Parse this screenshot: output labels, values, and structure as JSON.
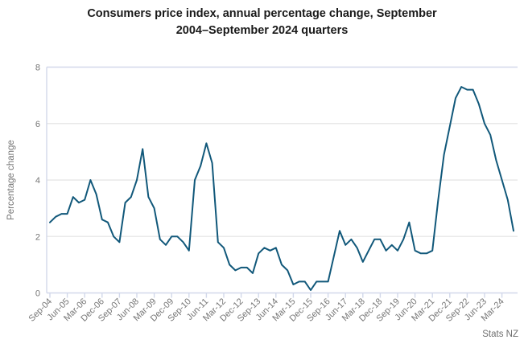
{
  "title": {
    "line1": "Consumers price index, annual percentage change, September",
    "line2": "2004–September 2024 quarters"
  },
  "y_axis_title": "Percentage change",
  "source": "Stats NZ",
  "colors": {
    "line": "#11587a",
    "grid": "#e9e9e9",
    "axis": "#d2d8ea",
    "tick_text": "#767676",
    "title_text": "#1a1a1a",
    "source_text": "#6f6f6f"
  },
  "chart_data": {
    "type": "line",
    "title": "Consumers price index, annual percentage change, September 2004–September 2024 quarters",
    "xlabel": "",
    "ylabel": "Percentage change",
    "ylim": [
      0,
      8
    ],
    "yticks": [
      0,
      2,
      4,
      6,
      8
    ],
    "x_tick_every": 3,
    "grid": true,
    "legend": "none",
    "x": [
      "Sep-04",
      "Dec-04",
      "Mar-05",
      "Jun-05",
      "Sep-05",
      "Dec-05",
      "Mar-06",
      "Jun-06",
      "Sep-06",
      "Dec-06",
      "Mar-07",
      "Jun-07",
      "Sep-07",
      "Dec-07",
      "Mar-08",
      "Jun-08",
      "Sep-08",
      "Dec-08",
      "Mar-09",
      "Jun-09",
      "Sep-09",
      "Dec-09",
      "Mar-10",
      "Jun-10",
      "Sep-10",
      "Dec-10",
      "Mar-11",
      "Jun-11",
      "Sep-11",
      "Dec-11",
      "Mar-12",
      "Jun-12",
      "Sep-12",
      "Dec-12",
      "Mar-13",
      "Jun-13",
      "Sep-13",
      "Dec-13",
      "Mar-14",
      "Jun-14",
      "Sep-14",
      "Dec-14",
      "Mar-15",
      "Jun-15",
      "Sep-15",
      "Dec-15",
      "Mar-16",
      "Jun-16",
      "Sep-16",
      "Dec-16",
      "Mar-17",
      "Jun-17",
      "Sep-17",
      "Dec-17",
      "Mar-18",
      "Jun-18",
      "Sep-18",
      "Dec-18",
      "Mar-19",
      "Jun-19",
      "Sep-19",
      "Dec-19",
      "Mar-20",
      "Jun-20",
      "Sep-20",
      "Dec-20",
      "Mar-21",
      "Jun-21",
      "Sep-21",
      "Dec-21",
      "Mar-22",
      "Jun-22",
      "Sep-22",
      "Dec-22",
      "Mar-23",
      "Jun-23",
      "Sep-23",
      "Dec-23",
      "Mar-24",
      "Jun-24",
      "Sep-24"
    ],
    "series": [
      {
        "name": "CPI annual percentage change",
        "values": [
          2.5,
          2.7,
          2.8,
          2.8,
          3.4,
          3.2,
          3.3,
          4.0,
          3.5,
          2.6,
          2.5,
          2.0,
          1.8,
          3.2,
          3.4,
          4.0,
          5.1,
          3.4,
          3.0,
          1.9,
          1.7,
          2.0,
          2.0,
          1.8,
          1.5,
          4.0,
          4.5,
          5.3,
          4.6,
          1.8,
          1.6,
          1.0,
          0.8,
          0.9,
          0.9,
          0.7,
          1.4,
          1.6,
          1.5,
          1.6,
          1.0,
          0.8,
          0.3,
          0.4,
          0.4,
          0.1,
          0.4,
          0.4,
          0.4,
          1.3,
          2.2,
          1.7,
          1.9,
          1.6,
          1.1,
          1.5,
          1.9,
          1.9,
          1.5,
          1.7,
          1.5,
          1.9,
          2.5,
          1.5,
          1.4,
          1.4,
          1.5,
          3.3,
          4.9,
          5.9,
          6.9,
          7.3,
          7.2,
          7.2,
          6.7,
          6.0,
          5.6,
          4.7,
          4.0,
          3.3,
          2.2
        ]
      }
    ]
  }
}
